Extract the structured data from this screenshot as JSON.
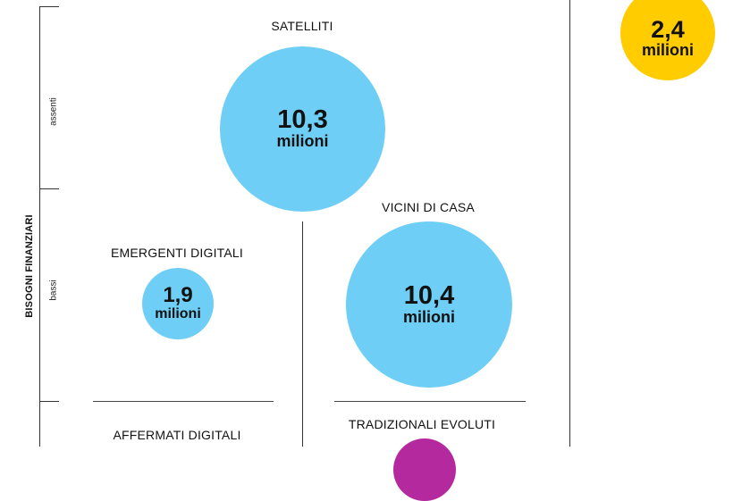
{
  "axis": {
    "title": "BISOGNI FINANZIARI",
    "levels": [
      "assenti",
      "bassi"
    ]
  },
  "segments": [
    {
      "id": "satelliti",
      "label": "SATELLITI",
      "value": "10,3",
      "unit": "milioni",
      "color": "#6ecef5"
    },
    {
      "id": "vicini",
      "label": "VICINI DI CASA",
      "value": "10,4",
      "unit": "milioni",
      "color": "#6ecef5"
    },
    {
      "id": "emergenti",
      "label": "EMERGENTI DIGITALI",
      "value": "1,9",
      "unit": "milioni",
      "color": "#6ecef5"
    },
    {
      "id": "corner",
      "label": "",
      "value": "2,4",
      "unit": "milioni",
      "color": "#ffcc00"
    },
    {
      "id": "affermati",
      "label": "AFFERMATI DIGITALI"
    },
    {
      "id": "tradizionali",
      "label": "TRADIZIONALI EVOLUTI",
      "color": "#b5299e"
    }
  ]
}
